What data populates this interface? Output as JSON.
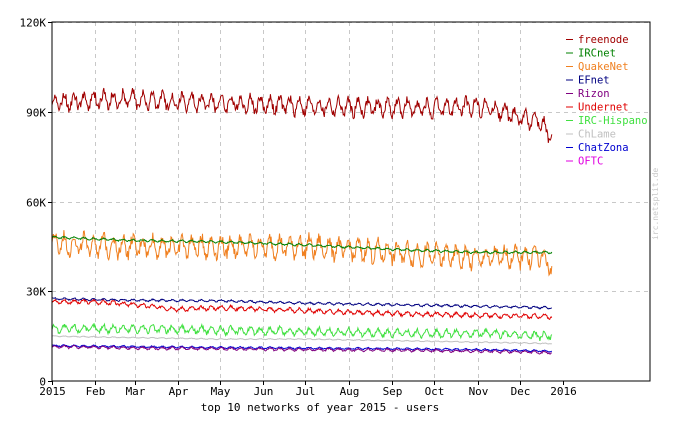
{
  "chart_data": {
    "type": "line",
    "caption": "top 10 networks of year 2015 - users",
    "watermark": "irc.netsplit.de",
    "x_ticks": [
      "2015",
      "Feb",
      "Mar",
      "Apr",
      "May",
      "Jun",
      "Jul",
      "Aug",
      "Sep",
      "Oct",
      "Nov",
      "Dec",
      "2016"
    ],
    "y_ticks": [
      "0",
      "30K",
      "60K",
      "90K",
      "120K"
    ],
    "ylim": [
      0,
      120000
    ],
    "grid": true,
    "legend_position": "top-right",
    "series": [
      {
        "name": "freenode",
        "color": "#a00000",
        "x": [
          "2015-01-01",
          "2015-02-01",
          "2015-03-01",
          "2015-04-01",
          "2015-05-01",
          "2015-06-01",
          "2015-07-01",
          "2015-08-01",
          "2015-09-01",
          "2015-10-01",
          "2015-11-01",
          "2015-11-15",
          "2015-12-01",
          "2015-12-15",
          "2015-12-24"
        ],
        "values": [
          93000,
          94000,
          94000,
          93500,
          93000,
          92500,
          92000,
          91500,
          91500,
          91000,
          92000,
          90500,
          88000,
          87000,
          81000
        ],
        "amplitude": 4000
      },
      {
        "name": "IRCnet",
        "color": "#008000",
        "x": [
          "2015-01-01",
          "2015-03-01",
          "2015-05-01",
          "2015-07-01",
          "2015-09-01",
          "2015-11-01",
          "2015-12-24"
        ],
        "values": [
          48000,
          47000,
          46500,
          45500,
          44000,
          43000,
          43000
        ],
        "amplitude": 500
      },
      {
        "name": "QuakeNet",
        "color": "#f08020",
        "x": [
          "2015-01-01",
          "2015-03-01",
          "2015-05-01",
          "2015-07-01",
          "2015-09-01",
          "2015-11-01",
          "2015-12-15",
          "2015-12-24"
        ],
        "values": [
          46000,
          45000,
          45000,
          45000,
          43000,
          41000,
          42000,
          38000
        ],
        "amplitude": 5000
      },
      {
        "name": "EFnet",
        "color": "#000080",
        "x": [
          "2015-01-01",
          "2015-03-01",
          "2015-05-01",
          "2015-07-01",
          "2015-09-01",
          "2015-11-01",
          "2015-12-24"
        ],
        "values": [
          27500,
          27000,
          26800,
          26000,
          25500,
          25000,
          24500
        ],
        "amplitude": 500
      },
      {
        "name": "Rizon",
        "color": "#800080",
        "x": [
          "2015-01-01",
          "2015-03-01",
          "2015-05-01",
          "2015-07-01",
          "2015-09-01",
          "2015-11-01",
          "2015-12-24"
        ],
        "values": [
          11500,
          11000,
          10800,
          10500,
          10300,
          10000,
          9500
        ],
        "amplitude": 600
      },
      {
        "name": "Undernet",
        "color": "#e00000",
        "x": [
          "2015-01-01",
          "2015-02-01",
          "2015-03-01",
          "2015-04-01",
          "2015-05-01",
          "2015-07-01",
          "2015-09-01",
          "2015-11-01",
          "2015-12-24"
        ],
        "values": [
          26500,
          26500,
          25500,
          24000,
          24500,
          23500,
          22500,
          22000,
          21500
        ],
        "amplitude": 1000
      },
      {
        "name": "IRC-Hispano",
        "color": "#40e040",
        "x": [
          "2015-01-01",
          "2015-03-01",
          "2015-05-01",
          "2015-07-01",
          "2015-09-01",
          "2015-11-01",
          "2015-12-24"
        ],
        "values": [
          17500,
          17500,
          17000,
          16500,
          16000,
          16000,
          15000
        ],
        "amplitude": 1800
      },
      {
        "name": "ChLame",
        "color": "#c0c0c0",
        "x": [
          "2015-01-01",
          "2015-03-01",
          "2015-05-01",
          "2015-07-01",
          "2015-09-01",
          "2015-11-01",
          "2015-12-24"
        ],
        "values": [
          15000,
          14500,
          14000,
          14000,
          13500,
          13000,
          12500
        ],
        "amplitude": 200
      },
      {
        "name": "ChatZona",
        "color": "#0000d0",
        "x": [
          "2015-01-01",
          "2015-03-01",
          "2015-05-01",
          "2015-07-01",
          "2015-09-01",
          "2015-11-01",
          "2015-12-24"
        ],
        "values": [
          11800,
          11500,
          11200,
          11000,
          10800,
          10500,
          10000
        ],
        "amplitude": 400
      },
      {
        "name": "OFTC",
        "color": "#e000e0",
        "x": [
          "2015-01-01",
          "2015-12-24"
        ],
        "values": [
          0,
          0
        ],
        "amplitude": 0
      }
    ]
  }
}
